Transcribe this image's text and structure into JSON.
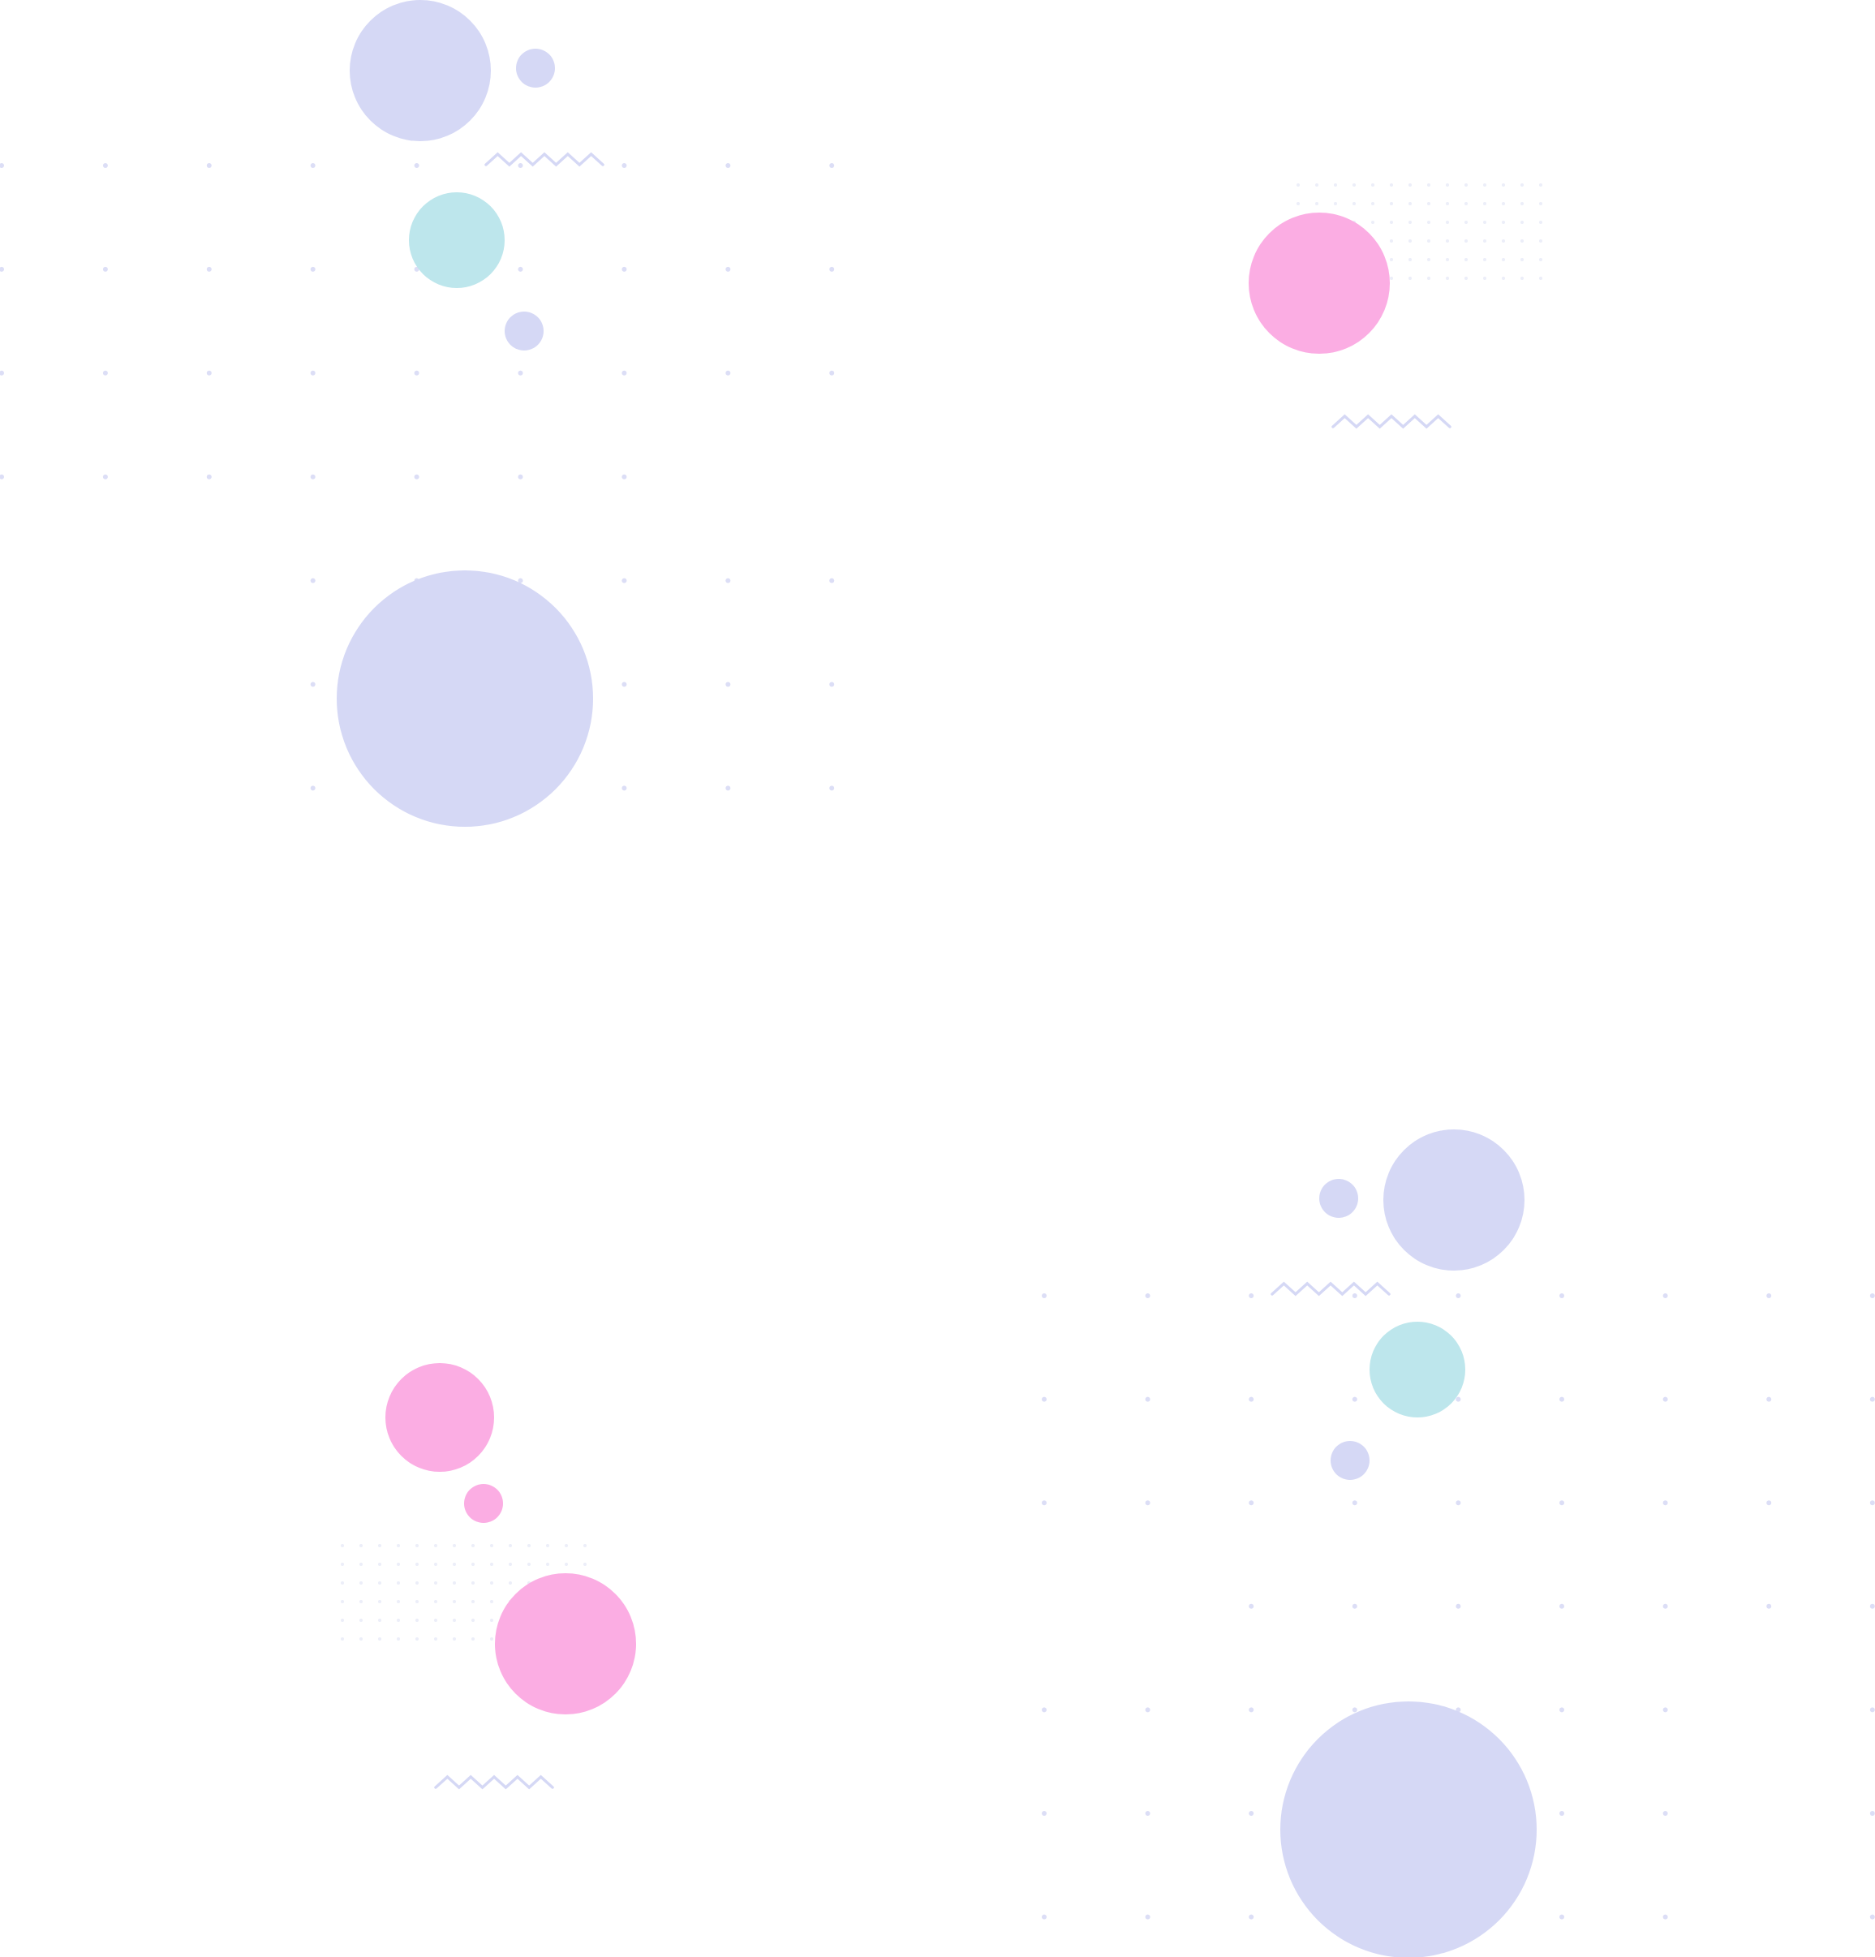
{
  "colors": {
    "background": "#ffffff",
    "lavender": "#d5d8f5",
    "pink": "#fbade3",
    "cyan": "#bde6ec",
    "dot_grid": "#dcdef6",
    "fine_dot_grid": "#eceef9",
    "zigzag": "#d5d8f5"
  }
}
